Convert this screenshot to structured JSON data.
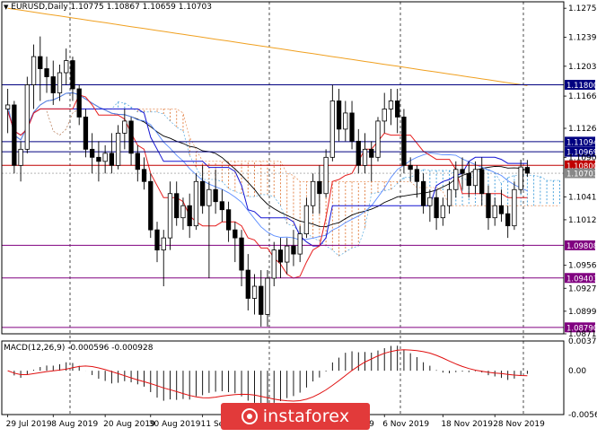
{
  "chart_title": "EURUSD,Daily  1.10775 1.10867 1.10659 1.10703",
  "macd_title": "MACD(12,26,9) -0.000596 -0.000928",
  "watermark": "instaforex",
  "colors": {
    "bull": "#ffffff",
    "bear": "#000000",
    "kijun": "#1414d2",
    "tenkan": "#e61e1e",
    "chikou": "#5a8cff",
    "senkou_a_cloud": "#3a9ad9",
    "senkou_b_cloud": "#e07a3a",
    "ma_black": "#000000",
    "ma_orange": "#f0a020",
    "level_navy": "#000080",
    "level_purple": "#800080",
    "level_red": "#c00000",
    "macd_hist": "#000000",
    "macd_signal": "#e01010"
  },
  "chart_data": {
    "type": "candlestick",
    "symbol": "EURUSD",
    "timeframe": "Daily",
    "ylim": [
      1.0871,
      1.1283
    ],
    "y_ticks": [
      "1.12750",
      "1.12390",
      "1.12030",
      "1.11660",
      "1.11260",
      "1.10900",
      "1.10410",
      "1.10125",
      "1.09560",
      "1.09275",
      "1.08990",
      "1.08710"
    ],
    "x_ticks": [
      "29 Jul 2019",
      "8 Aug 2019",
      "20 Aug 2019",
      "30 Aug 2019",
      "11 Sep 2019",
      "Oct 2019",
      "6 Nov 2019",
      "18 Nov 2019",
      "28 Nov 2019"
    ],
    "levels": [
      {
        "value": 1.118,
        "label": "1.11800",
        "color": "#000080"
      },
      {
        "value": 1.11094,
        "label": "1.11094",
        "color": "#000080"
      },
      {
        "value": 1.10969,
        "label": "1.10969",
        "color": "#000080"
      },
      {
        "value": 1.108,
        "label": "1.10800",
        "color": "#c00000"
      },
      {
        "value": 1.10703,
        "label": "1.10703",
        "color": "#888888"
      },
      {
        "value": 1.09808,
        "label": "1.09808",
        "color": "#800080"
      },
      {
        "value": 1.09403,
        "label": "1.09403",
        "color": "#800080"
      },
      {
        "value": 1.0879,
        "label": "1.08790",
        "color": "#800080"
      }
    ],
    "candles": [
      [
        1.115,
        1.1175,
        1.112,
        1.1155
      ],
      [
        1.1155,
        1.116,
        1.107,
        1.108
      ],
      [
        1.108,
        1.111,
        1.106,
        1.11
      ],
      [
        1.11,
        1.119,
        1.1095,
        1.118
      ],
      [
        1.118,
        1.123,
        1.115,
        1.1215
      ],
      [
        1.1215,
        1.124,
        1.116,
        1.12
      ],
      [
        1.12,
        1.1215,
        1.117,
        1.119
      ],
      [
        1.119,
        1.121,
        1.1155,
        1.117
      ],
      [
        1.117,
        1.1205,
        1.116,
        1.1195
      ],
      [
        1.1195,
        1.1225,
        1.118,
        1.121
      ],
      [
        1.121,
        1.1215,
        1.116,
        1.1175
      ],
      [
        1.1175,
        1.118,
        1.113,
        1.114
      ],
      [
        1.114,
        1.115,
        1.109,
        1.11
      ],
      [
        1.11,
        1.112,
        1.107,
        1.109
      ],
      [
        1.109,
        1.111,
        1.106,
        1.1085
      ],
      [
        1.1085,
        1.1105,
        1.107,
        1.1095
      ],
      [
        1.1095,
        1.112,
        1.107,
        1.108
      ],
      [
        1.108,
        1.113,
        1.1075,
        1.112
      ],
      [
        1.112,
        1.115,
        1.11,
        1.1135
      ],
      [
        1.1135,
        1.114,
        1.108,
        1.1095
      ],
      [
        1.1095,
        1.1105,
        1.106,
        1.1075
      ],
      [
        1.1075,
        1.109,
        1.105,
        1.106
      ],
      [
        1.106,
        1.107,
        1.099,
        1.1
      ],
      [
        1.1,
        1.101,
        1.096,
        1.0975
      ],
      [
        1.0975,
        1.1,
        1.093,
        1.099
      ],
      [
        1.099,
        1.106,
        1.0975,
        1.1045
      ],
      [
        1.1045,
        1.106,
        1.1005,
        1.1015
      ],
      [
        1.1015,
        1.104,
        1.1,
        1.103
      ],
      [
        1.103,
        1.1045,
        1.099,
        1.1005
      ],
      [
        1.1005,
        1.107,
        1.1,
        1.106
      ],
      [
        1.106,
        1.108,
        1.102,
        1.103
      ],
      [
        1.103,
        1.106,
        1.094,
        1.105
      ],
      [
        1.105,
        1.1075,
        1.102,
        1.1035
      ],
      [
        1.1035,
        1.105,
        1.101,
        1.1025
      ],
      [
        1.1025,
        1.1035,
        1.0985,
        1.1
      ],
      [
        1.1,
        1.101,
        1.096,
        1.099
      ],
      [
        1.099,
        1.1,
        1.093,
        1.095
      ],
      [
        1.095,
        1.097,
        1.09,
        1.0915
      ],
      [
        1.0915,
        1.0945,
        1.0895,
        1.093
      ],
      [
        1.093,
        1.095,
        1.088,
        1.0895
      ],
      [
        1.0895,
        1.095,
        1.088,
        1.094
      ],
      [
        1.094,
        1.0985,
        1.093,
        1.0975
      ],
      [
        1.0975,
        1.099,
        1.094,
        1.096
      ],
      [
        1.096,
        1.099,
        1.0945,
        1.098
      ],
      [
        1.098,
        1.1,
        1.0955,
        1.097
      ],
      [
        1.097,
        1.1005,
        1.096,
        1.0995
      ],
      [
        1.0995,
        1.104,
        1.099,
        1.103
      ],
      [
        1.103,
        1.107,
        1.102,
        1.106
      ],
      [
        1.106,
        1.108,
        1.102,
        1.1045
      ],
      [
        1.1045,
        1.11,
        1.104,
        1.109
      ],
      [
        1.109,
        1.118,
        1.1085,
        1.116
      ],
      [
        1.116,
        1.1175,
        1.111,
        1.1125
      ],
      [
        1.1125,
        1.116,
        1.111,
        1.1145
      ],
      [
        1.1145,
        1.116,
        1.11,
        1.111
      ],
      [
        1.111,
        1.1125,
        1.107,
        1.108
      ],
      [
        1.108,
        1.112,
        1.107,
        1.11
      ],
      [
        1.11,
        1.111,
        1.106,
        1.109
      ],
      [
        1.109,
        1.114,
        1.1085,
        1.1135
      ],
      [
        1.1135,
        1.117,
        1.112,
        1.115
      ],
      [
        1.115,
        1.1175,
        1.113,
        1.116
      ],
      [
        1.116,
        1.1175,
        1.112,
        1.114
      ],
      [
        1.114,
        1.115,
        1.107,
        1.108
      ],
      [
        1.108,
        1.109,
        1.106,
        1.1075
      ],
      [
        1.1075,
        1.108,
        1.104,
        1.106
      ],
      [
        1.106,
        1.107,
        1.102,
        1.103
      ],
      [
        1.103,
        1.105,
        1.101,
        1.104
      ],
      [
        1.104,
        1.105,
        1.1,
        1.1015
      ],
      [
        1.1015,
        1.104,
        1.1005,
        1.103
      ],
      [
        1.103,
        1.106,
        1.102,
        1.105
      ],
      [
        1.105,
        1.1085,
        1.104,
        1.1075
      ],
      [
        1.1075,
        1.109,
        1.105,
        1.107
      ],
      [
        1.107,
        1.1085,
        1.104,
        1.1055
      ],
      [
        1.1055,
        1.1085,
        1.1045,
        1.1075
      ],
      [
        1.1075,
        1.109,
        1.103,
        1.1045
      ],
      [
        1.1045,
        1.1055,
        1.1,
        1.1015
      ],
      [
        1.1015,
        1.104,
        1.1005,
        1.103
      ],
      [
        1.103,
        1.105,
        1.101,
        1.102
      ],
      [
        1.102,
        1.103,
        1.099,
        1.1005
      ],
      [
        1.1005,
        1.106,
        1.1,
        1.105
      ],
      [
        1.105,
        1.1087,
        1.1045,
        1.1078
      ],
      [
        1.10775,
        1.10867,
        1.10659,
        1.10703
      ]
    ],
    "macd": {
      "name": "MACD(12,26,9)",
      "main": -0.000596,
      "signal": -0.000928,
      "y_ticks": [
        "0.003780",
        "0.00",
        "-0.005621"
      ],
      "ylim": [
        -0.0056,
        0.0038
      ]
    }
  }
}
